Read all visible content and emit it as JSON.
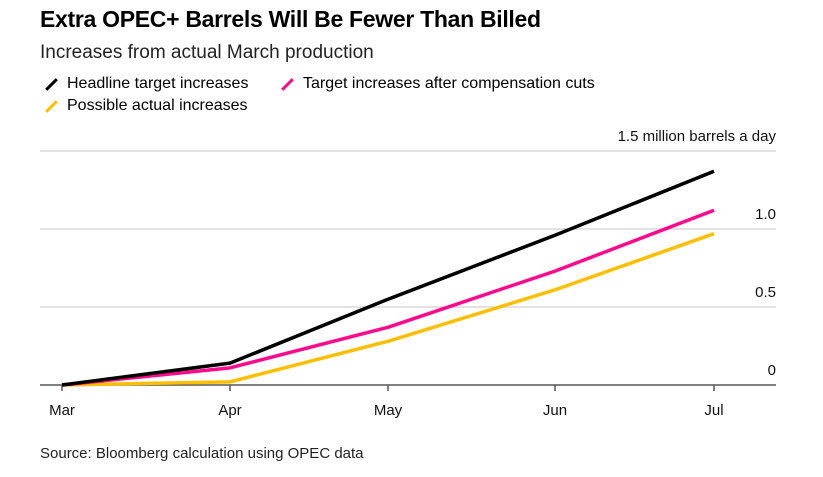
{
  "title": "Extra OPEC+ Barrels Will Be Fewer Than Billed",
  "subtitle": "Increases from actual March production",
  "source": "Source: Bloomberg calculation using OPEC data",
  "chart_data": {
    "type": "line",
    "title": "Extra OPEC+ Barrels Will Be Fewer Than Billed",
    "subtitle": "Increases from actual March production",
    "ylabel": "1.5 million barrels a day",
    "categories": [
      "Mar",
      "Apr",
      "May",
      "Jun",
      "Jul"
    ],
    "yticks": [
      {
        "v": 0,
        "label": "0"
      },
      {
        "v": 0.5,
        "label": "0.5"
      },
      {
        "v": 1.0,
        "label": "1.0"
      },
      {
        "v": 1.5,
        "label": "1.5 million barrels a day"
      }
    ],
    "ylim": [
      0,
      1.5
    ],
    "grid": true,
    "legend": "top-left",
    "series": [
      {
        "name": "Headline target increases",
        "color": "#000000",
        "values": [
          0,
          0.14,
          0.55,
          0.96,
          1.37
        ]
      },
      {
        "name": "Target increases after compensation cuts",
        "color": "#ff0a8c",
        "values": [
          0,
          0.11,
          0.37,
          0.73,
          1.12
        ]
      },
      {
        "name": "Possible actual increases",
        "color": "#ffbf00",
        "values": [
          0,
          0.02,
          0.28,
          0.61,
          0.97
        ]
      }
    ]
  }
}
